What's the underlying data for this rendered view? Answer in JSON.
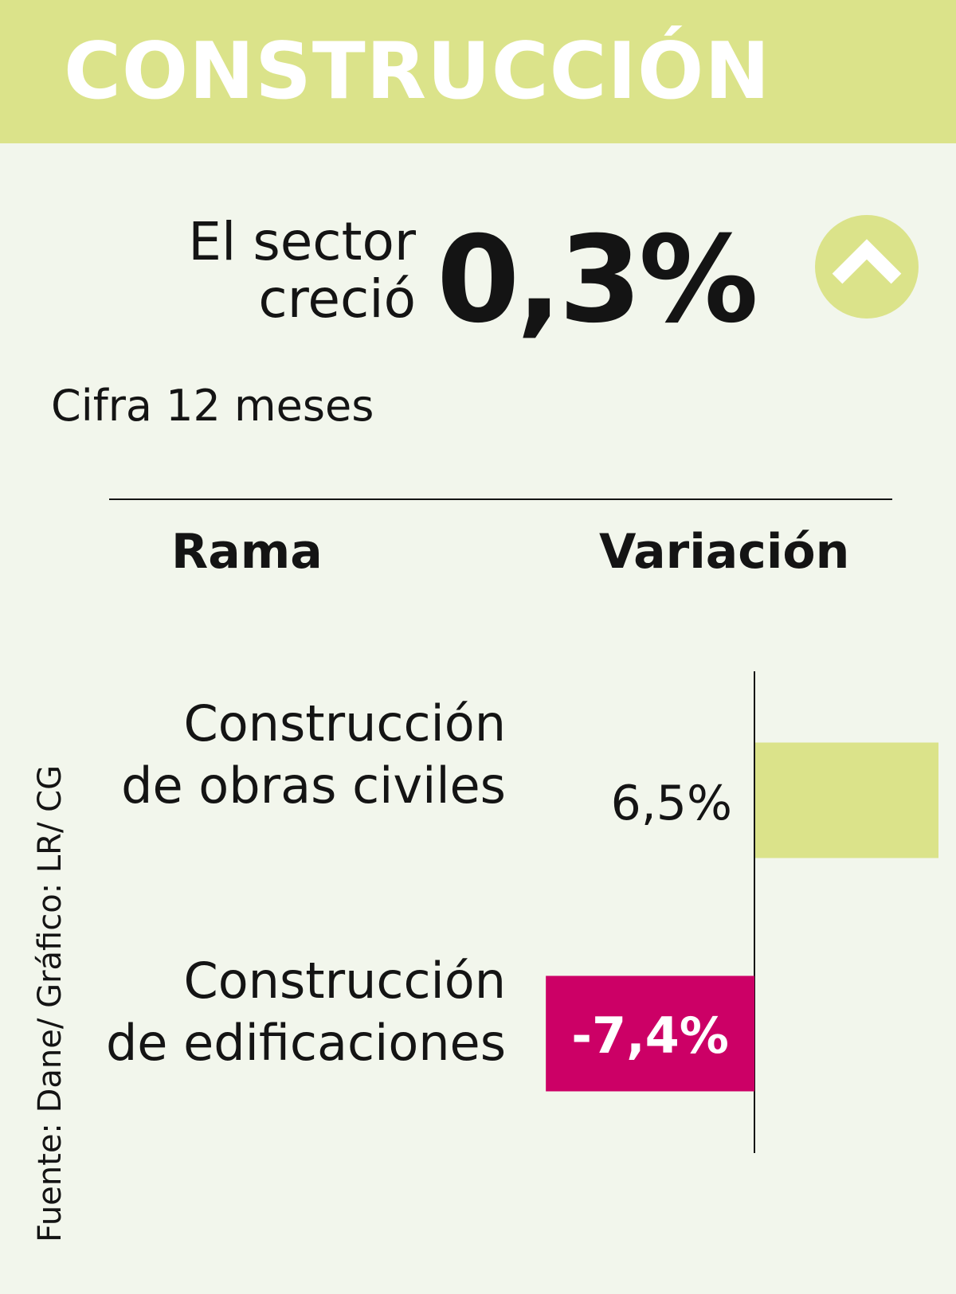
{
  "header": {
    "title": "CONSTRUCCIÓN"
  },
  "summary": {
    "lead_line1": "El sector",
    "lead_line2": "creció",
    "value": "0,3%",
    "period": "Cifra 12 meses",
    "trend_icon": "chevron-up-icon"
  },
  "source": "Fuente: Dane/ Gráfico: LR/ CG",
  "colors": {
    "accent": "#dbe38a",
    "negative": "#cc0066",
    "text": "#141414"
  },
  "chart_data": {
    "type": "bar",
    "orientation": "horizontal",
    "column_headers": [
      "Rama",
      "Variación"
    ],
    "categories": [
      [
        "Construcción",
        "de obras civiles"
      ],
      [
        "Construcción",
        "de edificaciones"
      ]
    ],
    "values": [
      6.5,
      -7.4
    ],
    "value_labels": [
      "6,5%",
      "-7,4%"
    ],
    "unit": "%"
  }
}
